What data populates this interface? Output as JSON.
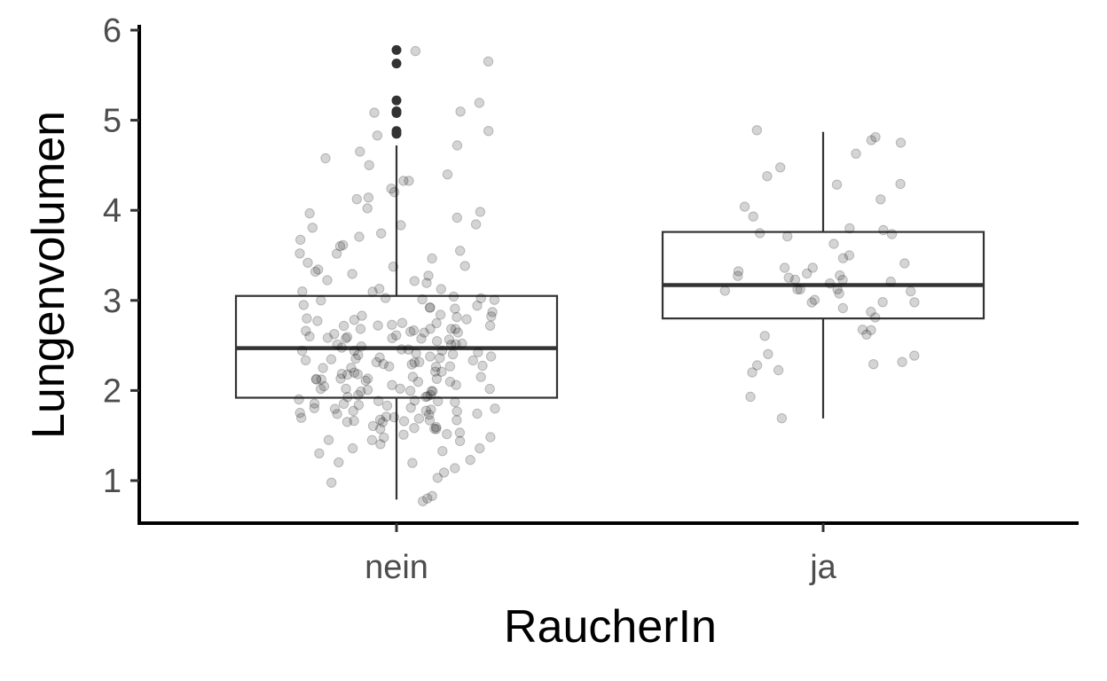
{
  "chart_data": {
    "type": "boxplot",
    "xlabel": "RaucherIn",
    "ylabel": "Lungenvolumen",
    "ylim": [
      0.55,
      6.05
    ],
    "yticks": [
      1,
      2,
      3,
      4,
      5,
      6
    ],
    "categories": [
      "nein",
      "ja"
    ],
    "boxes": [
      {
        "category": "nein",
        "q1": 1.92,
        "median": 2.47,
        "q3": 3.05,
        "whisker_low": 0.79,
        "whisker_high": 4.72,
        "outliers": [
          4.85,
          4.88,
          5.08,
          5.1,
          5.22,
          5.63,
          5.78
        ]
      },
      {
        "category": "ja",
        "q1": 2.8,
        "median": 3.17,
        "q3": 3.76,
        "whisker_low": 1.69,
        "whisker_high": 4.87,
        "outliers": []
      }
    ],
    "points": [
      {
        "category": "nein",
        "y": [
          0.79,
          0.8,
          0.84,
          1.0,
          1.05,
          1.08,
          1.12,
          1.18,
          1.22,
          1.25,
          1.3,
          1.32,
          1.35,
          1.38,
          1.4,
          1.42,
          1.44,
          1.45,
          1.48,
          1.5,
          1.5,
          1.52,
          1.53,
          1.55,
          1.56,
          1.57,
          1.58,
          1.6,
          1.6,
          1.62,
          1.63,
          1.64,
          1.65,
          1.66,
          1.67,
          1.68,
          1.7,
          1.7,
          1.71,
          1.72,
          1.73,
          1.74,
          1.75,
          1.76,
          1.77,
          1.78,
          1.79,
          1.8,
          1.8,
          1.81,
          1.82,
          1.83,
          1.84,
          1.85,
          1.86,
          1.87,
          1.88,
          1.89,
          1.9,
          1.9,
          1.91,
          1.92,
          1.93,
          1.94,
          1.95,
          1.96,
          1.97,
          1.98,
          1.99,
          2.0,
          2.0,
          2.01,
          2.02,
          2.03,
          2.04,
          2.05,
          2.06,
          2.07,
          2.08,
          2.09,
          2.1,
          2.1,
          2.11,
          2.12,
          2.13,
          2.14,
          2.15,
          2.16,
          2.17,
          2.18,
          2.19,
          2.2,
          2.2,
          2.21,
          2.22,
          2.23,
          2.24,
          2.25,
          2.26,
          2.27,
          2.28,
          2.29,
          2.3,
          2.3,
          2.31,
          2.32,
          2.33,
          2.34,
          2.35,
          2.36,
          2.37,
          2.38,
          2.39,
          2.4,
          2.4,
          2.41,
          2.42,
          2.43,
          2.44,
          2.45,
          2.46,
          2.47,
          2.48,
          2.49,
          2.5,
          2.5,
          2.51,
          2.52,
          2.53,
          2.54,
          2.55,
          2.56,
          2.57,
          2.58,
          2.59,
          2.6,
          2.6,
          2.61,
          2.62,
          2.63,
          2.64,
          2.65,
          2.66,
          2.67,
          2.68,
          2.69,
          2.7,
          2.7,
          2.71,
          2.72,
          2.73,
          2.74,
          2.75,
          2.76,
          2.77,
          2.78,
          2.79,
          2.8,
          2.8,
          2.82,
          2.84,
          2.86,
          2.88,
          2.9,
          2.9,
          2.92,
          2.94,
          2.96,
          2.98,
          3.0,
          3.0,
          3.02,
          3.04,
          3.06,
          3.08,
          3.1,
          3.12,
          3.15,
          3.18,
          3.2,
          3.22,
          3.25,
          3.28,
          3.3,
          3.33,
          3.36,
          3.4,
          3.43,
          3.46,
          3.5,
          3.53,
          3.56,
          3.6,
          3.63,
          3.66,
          3.7,
          3.74,
          3.78,
          3.82,
          3.86,
          3.9,
          3.95,
          4.0,
          4.05,
          4.1,
          4.15,
          4.2,
          4.25,
          4.3,
          4.35,
          4.42,
          4.5,
          4.58,
          4.65,
          4.72,
          4.85,
          4.88,
          5.08,
          5.1,
          5.22,
          5.63,
          5.78
        ]
      },
      {
        "category": "ja",
        "y": [
          1.69,
          1.95,
          2.2,
          2.22,
          2.25,
          2.28,
          2.3,
          2.38,
          2.4,
          2.6,
          2.62,
          2.68,
          2.7,
          2.8,
          2.85,
          2.9,
          2.95,
          2.98,
          3.0,
          3.02,
          3.05,
          3.08,
          3.1,
          3.1,
          3.12,
          3.14,
          3.16,
          3.18,
          3.2,
          3.22,
          3.25,
          3.28,
          3.3,
          3.32,
          3.34,
          3.36,
          3.38,
          3.4,
          3.45,
          3.5,
          3.6,
          3.7,
          3.72,
          3.75,
          3.8,
          3.82,
          3.95,
          4.05,
          4.1,
          4.28,
          4.3,
          4.4,
          4.5,
          4.65,
          4.75,
          4.78,
          4.8,
          4.87
        ]
      }
    ],
    "colors": {
      "box_line": "#333333",
      "points": "#000000",
      "axis": "#000000",
      "tick_text": "#4d4d4d"
    }
  }
}
